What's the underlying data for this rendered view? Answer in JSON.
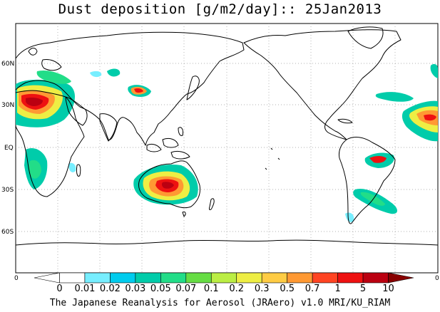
{
  "title": "Dust deposition [g/m2/day]:: 25Jan2013",
  "footer": "The Japanese Reanalysis for Aerosol (JRAero) v1.0 MRI/KU_RIAM",
  "lat_labels": [
    "60N",
    "30N",
    "EQ",
    "30S",
    "60S"
  ],
  "axis_end_labels": {
    "left": "0",
    "right": "0"
  },
  "colorbar": {
    "labels": [
      "0",
      "0.01",
      "0.02",
      "0.03",
      "0.05",
      "0.07",
      "0.1",
      "0.2",
      "0.3",
      "0.5",
      "0.7",
      "1",
      "5",
      "10"
    ],
    "colors": [
      "#ffffff",
      "#ffffff",
      "#77eeff",
      "#00ccee",
      "#00ccaa",
      "#22dd88",
      "#66dd44",
      "#bbee44",
      "#eeee44",
      "#ffcc44",
      "#ff9933",
      "#ff4422",
      "#ee1111",
      "#bb0011",
      "#880000"
    ]
  },
  "map": {
    "land_color": "#ffffff",
    "coast_color": "#000000",
    "grid": "dotted"
  }
}
